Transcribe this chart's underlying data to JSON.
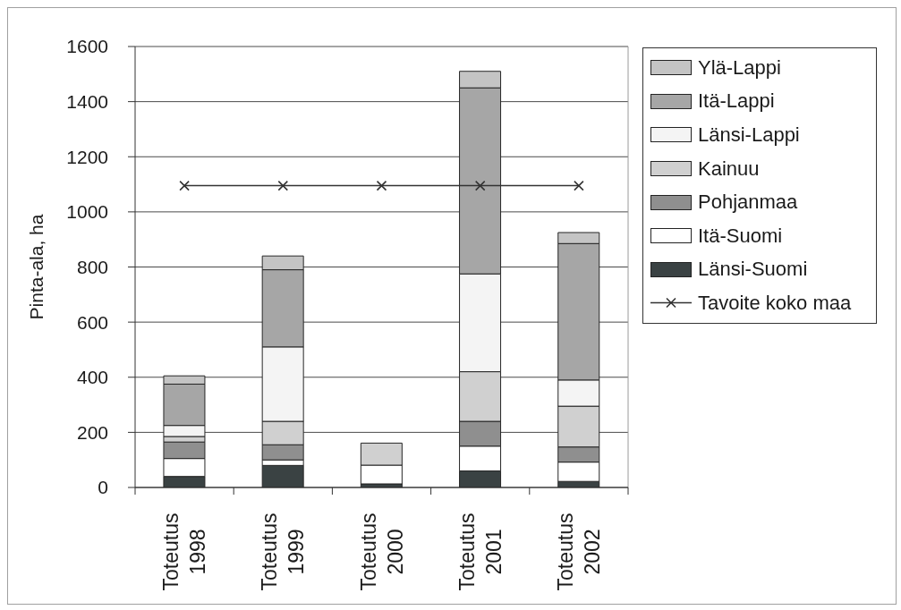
{
  "chart_data": {
    "type": "bar",
    "stacked": true,
    "categories": [
      "Toteutus 1998",
      "Toteutus 1999",
      "Toteutus 2000",
      "Toteutus 2001",
      "Toteutus 2002"
    ],
    "ylabel": "Pinta-ala, ha",
    "ylim": [
      0,
      1600
    ],
    "yticks": [
      0,
      200,
      400,
      600,
      800,
      1000,
      1200,
      1400,
      1600
    ],
    "grid": "y",
    "legend": "right",
    "marker": "cross",
    "series": [
      {
        "name": "Länsi-Suomi",
        "color": "#3a4243",
        "values": [
          40,
          80,
          13,
          60,
          22
        ]
      },
      {
        "name": "Itä-Suomi",
        "color": "#ffffff",
        "values": [
          65,
          20,
          68,
          90,
          70
        ]
      },
      {
        "name": "Pohjanmaa",
        "color": "#8f8f8f",
        "values": [
          60,
          55,
          0,
          90,
          55
        ]
      },
      {
        "name": "Kainuu",
        "color": "#d0d0d0",
        "values": [
          20,
          85,
          80,
          180,
          148
        ]
      },
      {
        "name": "Länsi-Lappi",
        "color": "#f4f4f4",
        "values": [
          40,
          270,
          0,
          355,
          95
        ]
      },
      {
        "name": "Itä-Lappi",
        "color": "#a6a6a6",
        "values": [
          150,
          280,
          0,
          675,
          495
        ]
      },
      {
        "name": "Ylä-Lappi",
        "color": "#c4c4c4",
        "values": [
          30,
          50,
          0,
          60,
          40
        ]
      },
      {
        "name": "Tavoite koko maa",
        "type": "line",
        "color": "#333333",
        "values": [
          1095,
          1095,
          1095,
          1095,
          1095
        ]
      }
    ]
  }
}
